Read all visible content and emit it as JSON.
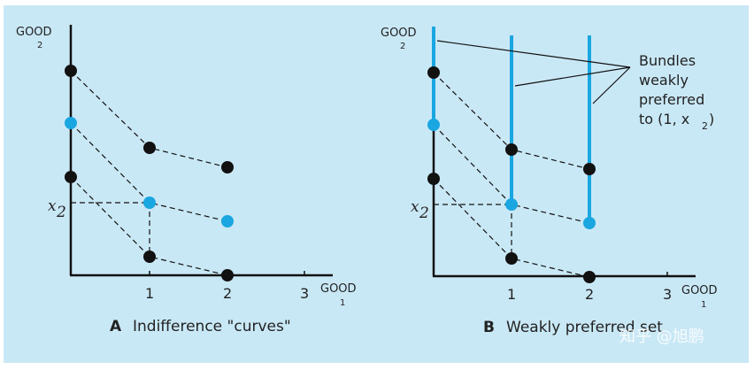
{
  "panels": [
    {
      "id": "A",
      "caption_letter": "A",
      "caption_text": "Indifference \"curves\"",
      "y_axis_label": "GOOD",
      "y_axis_sub": "2",
      "x_axis_label": "GOOD",
      "x_axis_sub": "1",
      "x_ticks": [
        "1",
        "2",
        "3"
      ],
      "x2_label": "x",
      "x2_sub": "2"
    },
    {
      "id": "B",
      "caption_letter": "B",
      "caption_text": "Weakly preferred set",
      "y_axis_label": "GOOD",
      "y_axis_sub": "2",
      "x_axis_label": "GOOD",
      "x_axis_sub": "1",
      "x_ticks": [
        "1",
        "2",
        "3"
      ],
      "x2_label": "x",
      "x2_sub": "2",
      "callout_lines": [
        "Bundles",
        "weakly",
        "preferred",
        "to (1, x"
      ],
      "callout_sub": "2",
      "callout_close": ")"
    }
  ],
  "colors": {
    "background": "#c9e8f6",
    "highlight": "#1aa6e0",
    "ink": "#111111"
  },
  "watermark": "知乎 @旭鹏"
}
